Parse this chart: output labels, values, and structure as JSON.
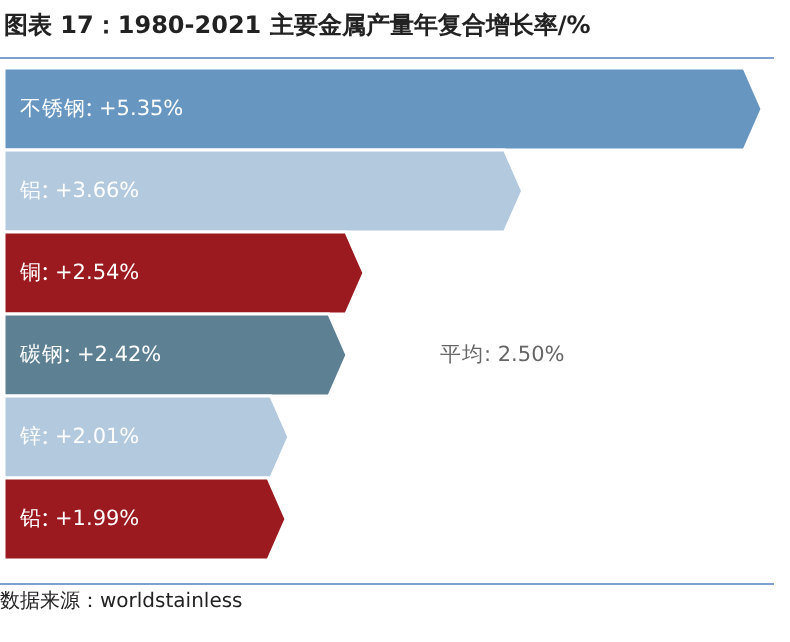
{
  "chart_data": {
    "type": "bar",
    "orientation": "horizontal",
    "title": "图表 17：1980-2021 主要金属产量年复合增长率/%",
    "categories": [
      "不锈钢",
      "铝",
      "铜",
      "碳钢",
      "锌",
      "铅"
    ],
    "values": [
      5.35,
      3.66,
      2.54,
      2.42,
      2.01,
      1.99
    ],
    "value_labels": [
      "+5.35%",
      "+3.66%",
      "+2.54%",
      "+2.42%",
      "+2.01%",
      "+1.99%"
    ],
    "colors": [
      "#6796c0",
      "#b3c9de",
      "#9b1a1f",
      "#5e8093",
      "#b3c9de",
      "#9b1a1f"
    ],
    "annotations": [
      "平均: 2.50%",
      "数据来源：worldstainless"
    ]
  }
}
